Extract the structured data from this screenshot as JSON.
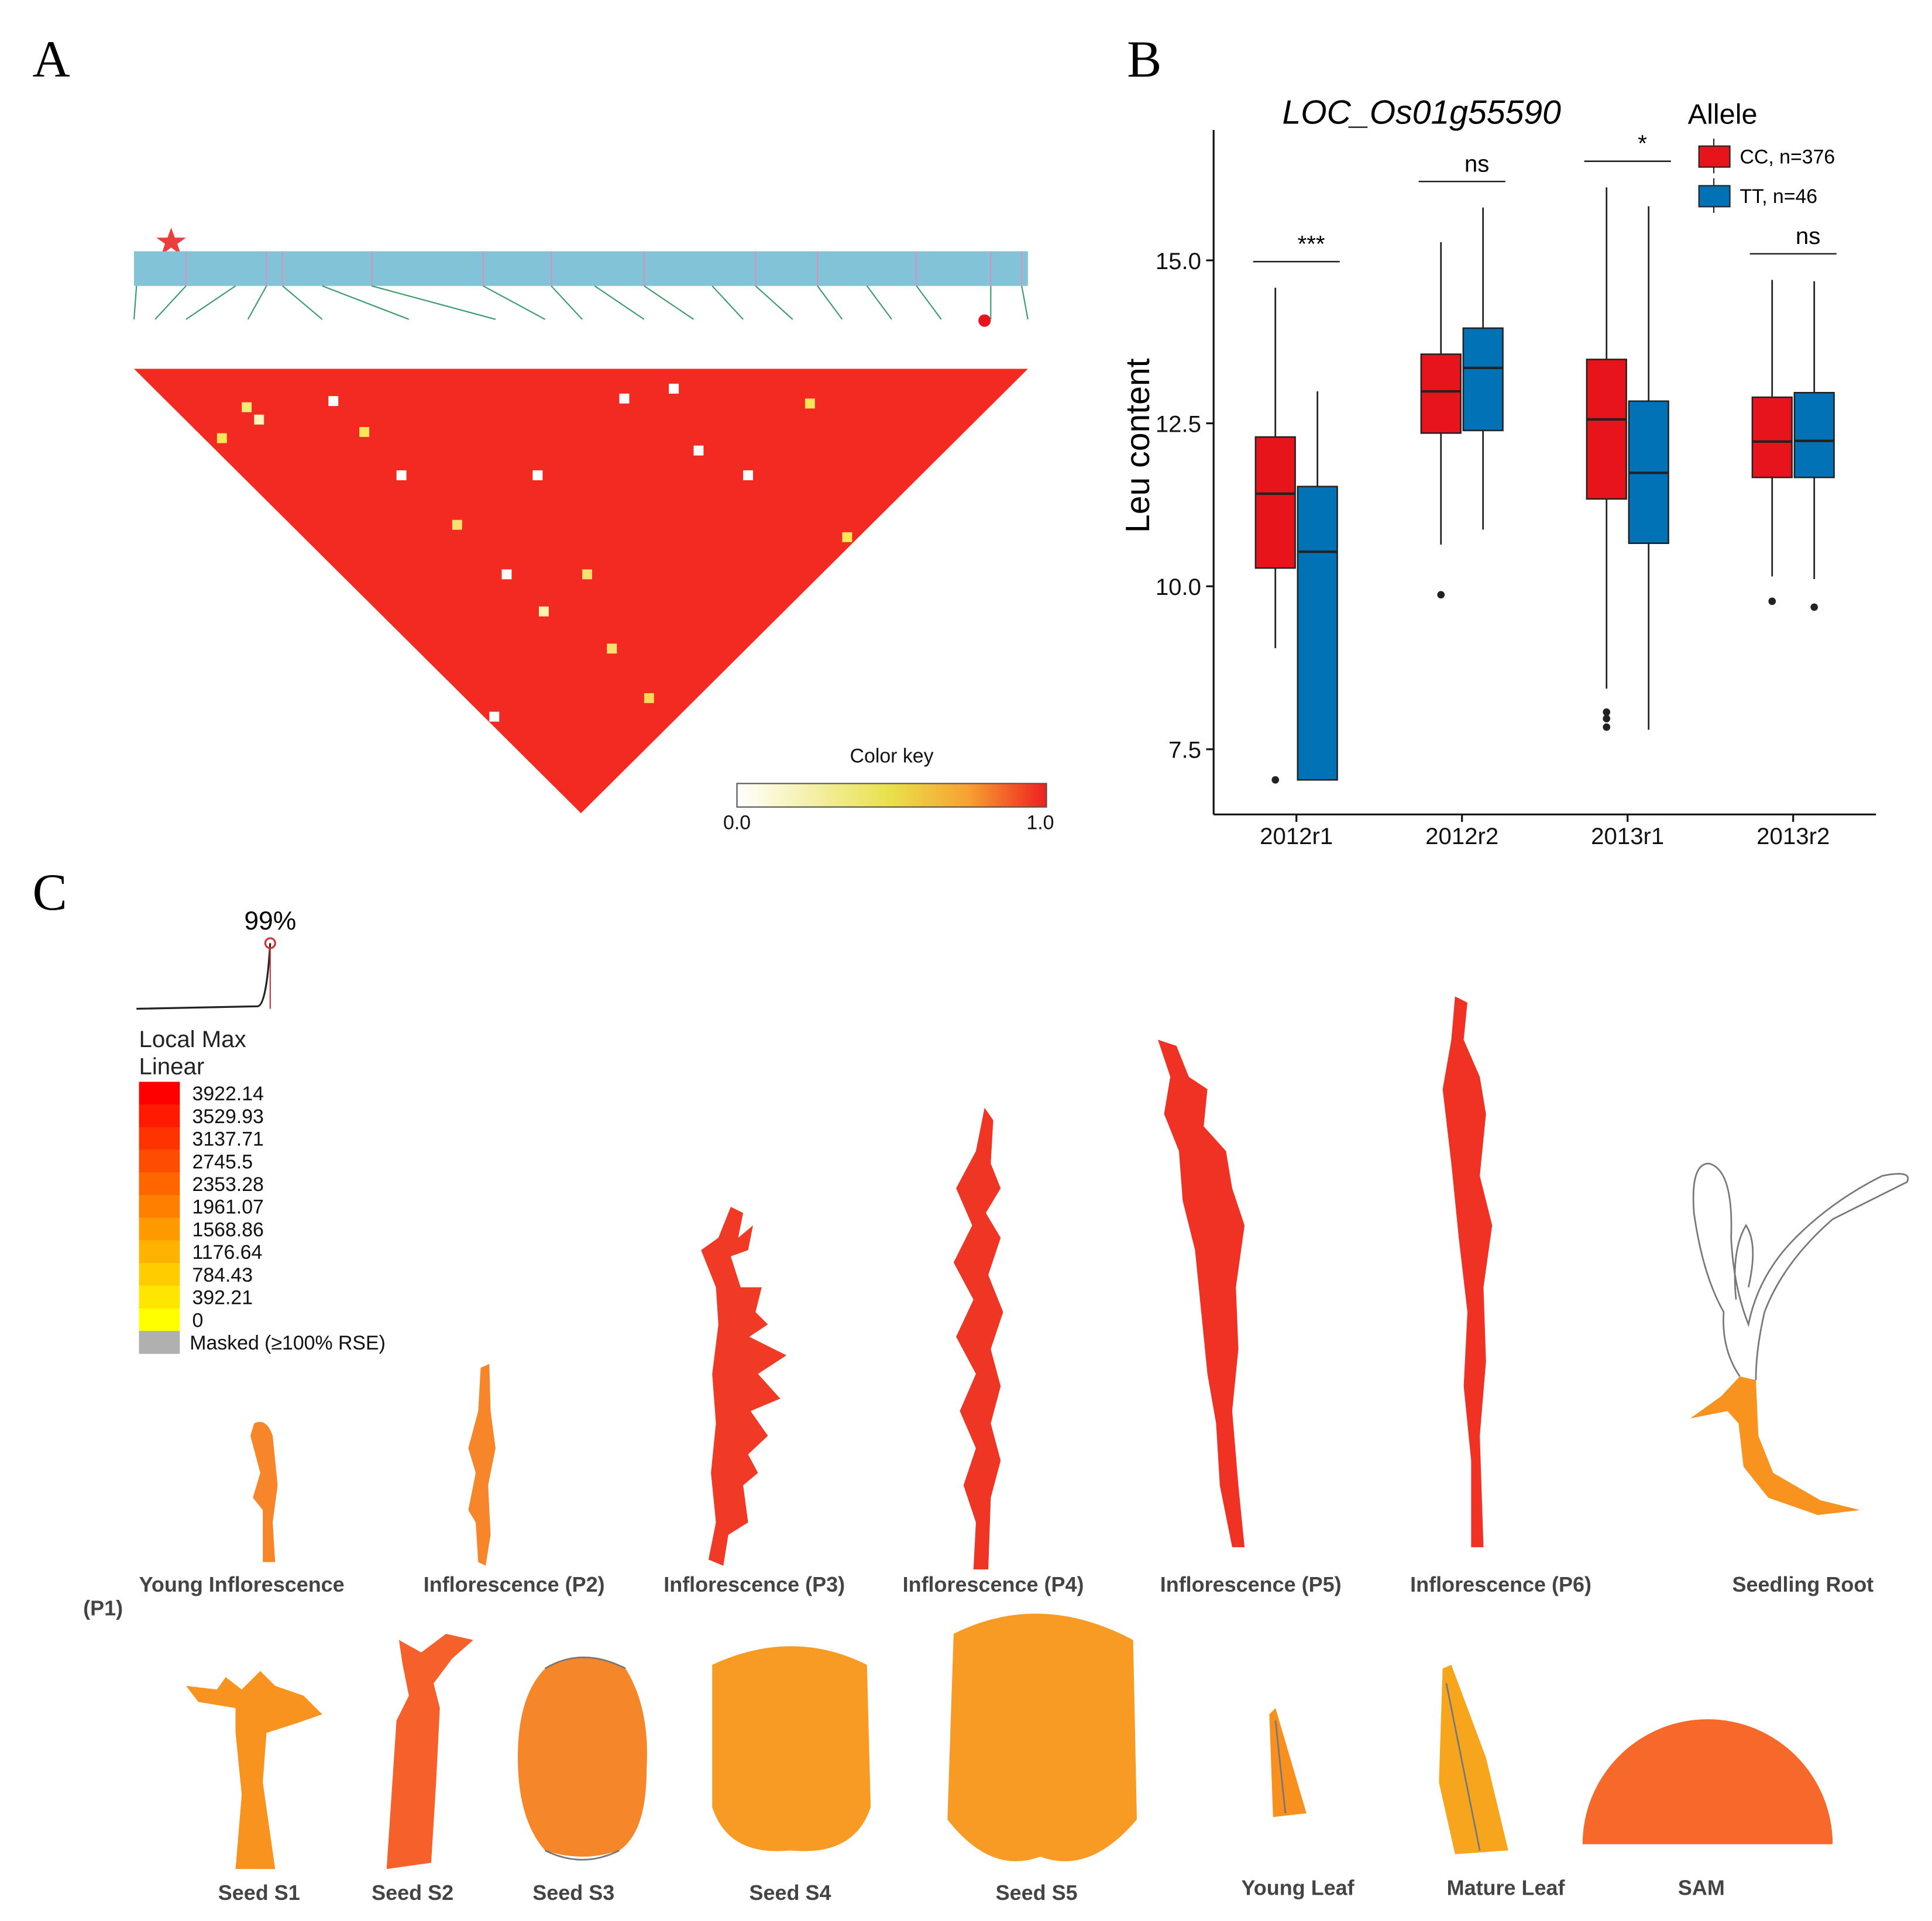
{
  "panel_labels": [
    "A",
    "B",
    "C"
  ],
  "panel_a": {
    "color_key": {
      "title": "Color key",
      "min_label": "0.0",
      "max_label": "1.0"
    }
  },
  "chart_data": {
    "type": "box",
    "title": "LOC_Os01g55590",
    "ylabel": "Leu content",
    "categories": [
      "2012r1",
      "2012r2",
      "2013r1",
      "2013r2"
    ],
    "ylim": [
      6.5,
      17
    ],
    "yticks": [
      {
        "value": 7.5,
        "label": "7.5"
      },
      {
        "value": 10,
        "label": "10.0"
      },
      {
        "value": 12.5,
        "label": "12.5"
      },
      {
        "value": 15,
        "label": "15.0"
      }
    ],
    "legend_title": "Allele",
    "annotations": [
      "***",
      "ns",
      "*",
      "ns"
    ],
    "series": [
      {
        "name": "CC, n=376",
        "color": "#e8141b",
        "values": [
          {
            "min": 9.05,
            "q1": 10.28,
            "median": 11.42,
            "q3": 12.29,
            "max": 14.58,
            "outliers": [
              7.03
            ]
          },
          {
            "min": 10.64,
            "q1": 12.35,
            "median": 12.99,
            "q3": 13.56,
            "max": 15.28,
            "outliers": [
              9.87
            ]
          },
          {
            "min": 8.43,
            "q1": 11.34,
            "median": 12.56,
            "q3": 13.48,
            "max": 16.12,
            "outliers": [
              8.07,
              7.97,
              7.84
            ]
          },
          {
            "min": 10.15,
            "q1": 11.67,
            "median": 12.22,
            "q3": 12.9,
            "max": 14.7,
            "outliers": [
              9.77
            ]
          }
        ]
      },
      {
        "name": "TT, n=46",
        "color": "#0072b5",
        "values": [
          {
            "min": 7.03,
            "q1": 7.03,
            "median": 10.53,
            "q3": 11.53,
            "max": 12.99,
            "outliers": []
          },
          {
            "min": 10.87,
            "q1": 12.39,
            "median": 13.35,
            "q3": 13.96,
            "max": 15.81,
            "outliers": []
          },
          {
            "min": 7.8,
            "q1": 10.66,
            "median": 11.74,
            "q3": 12.84,
            "max": 15.83,
            "outliers": []
          },
          {
            "min": 10.11,
            "q1": 11.67,
            "median": 12.23,
            "q3": 12.97,
            "max": 14.68,
            "outliers": [
              9.68
            ]
          }
        ]
      }
    ]
  },
  "panel_c": {
    "percentile": "99%",
    "scale_title": "Local Max",
    "scale_mode": "Linear",
    "legend": [
      {
        "label": "3922.14",
        "color": "#ff0000"
      },
      {
        "label": "3529.93",
        "color": "#ff1a00"
      },
      {
        "label": "3137.71",
        "color": "#ff3300"
      },
      {
        "label": "2745.5",
        "color": "#ff4d00"
      },
      {
        "label": "2353.28",
        "color": "#ff6600"
      },
      {
        "label": "1961.07",
        "color": "#ff8000"
      },
      {
        "label": "1568.86",
        "color": "#ff9900"
      },
      {
        "label": "1176.64",
        "color": "#ffb300"
      },
      {
        "label": "784.43",
        "color": "#ffcc00"
      },
      {
        "label": "392.21",
        "color": "#ffe600"
      },
      {
        "label": "0",
        "color": "#ffff00"
      }
    ],
    "masked": {
      "label": "Masked (≥100% RSE)",
      "color": "#b0b0b0"
    },
    "tissues": [
      {
        "label": "Young Inflorescence",
        "label_line2": "(P1)",
        "color": "#f7862a"
      },
      {
        "label": "Inflorescence (P2)",
        "color": "#f7862a"
      },
      {
        "label": "Inflorescence (P3)",
        "color": "#f03a26"
      },
      {
        "label": "Inflorescence (P4)",
        "color": "#ef3524"
      },
      {
        "label": "Inflorescence (P5)",
        "color": "#ef3224"
      },
      {
        "label": "Inflorescence (P6)",
        "color": "#ef3224"
      },
      {
        "label": "Seedling Root",
        "color": "#f7931e"
      },
      {
        "label": "Seed S1",
        "color": "#f7931e"
      },
      {
        "label": "Seed S2",
        "color": "#f6602a"
      },
      {
        "label": "Seed S3",
        "color": "#f6862a"
      },
      {
        "label": "Seed S4",
        "color": "#f89b24"
      },
      {
        "label": "Seed S5",
        "color": "#f89b24"
      },
      {
        "label": "Young Leaf",
        "color": "#f7901e"
      },
      {
        "label": "Mature Leaf",
        "color": "#f8a51e"
      },
      {
        "label": "SAM",
        "color": "#f6692a"
      }
    ]
  }
}
